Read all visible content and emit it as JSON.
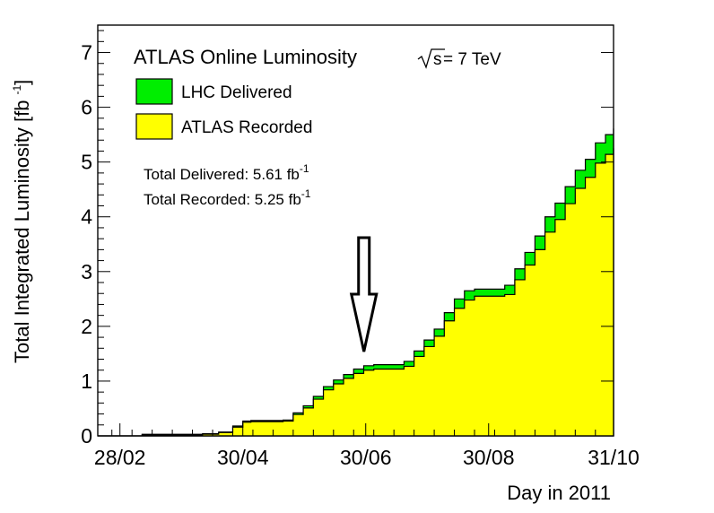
{
  "chart_data": {
    "type": "area",
    "title": "ATLAS Online Luminosity",
    "energy_label": "s",
    "energy_value": " = 7 TeV",
    "xlabel": "Day in 2011",
    "ylabel": "Total Integrated Luminosity [fb",
    "ylabel_unit_exp": "-1",
    "ylabel_close": "]",
    "x_tick_labels": [
      "28/02",
      "30/04",
      "30/06",
      "30/08",
      "31/10"
    ],
    "x_tick_days": [
      59,
      120,
      181,
      242,
      304
    ],
    "xlim": [
      48,
      304
    ],
    "ylim": [
      0,
      7.5
    ],
    "y_ticks": [
      0,
      1,
      2,
      3,
      4,
      5,
      6,
      7
    ],
    "legend": [
      {
        "label": "LHC Delivered",
        "color": "#00ee00"
      },
      {
        "label": "ATLAS Recorded",
        "color": "#ffff00"
      }
    ],
    "annotations": {
      "delivered_text": "Total Delivered: 5.61 fb",
      "recorded_text": "Total Recorded: 5.25 fb",
      "unit_exp": "-1"
    },
    "arrow_day": 181,
    "series": [
      {
        "name": "LHC Delivered",
        "x": [
          48,
          70,
          100,
          108,
          115,
          120,
          124,
          130,
          135,
          140,
          145,
          150,
          155,
          160,
          165,
          170,
          175,
          180,
          185,
          190,
          195,
          200,
          205,
          210,
          215,
          220,
          225,
          230,
          235,
          240,
          245,
          250,
          255,
          260,
          265,
          270,
          275,
          280,
          285,
          290,
          295,
          300,
          304
        ],
        "values": [
          0,
          0.03,
          0.04,
          0.07,
          0.18,
          0.27,
          0.28,
          0.28,
          0.28,
          0.29,
          0.42,
          0.55,
          0.72,
          0.9,
          1.02,
          1.12,
          1.22,
          1.28,
          1.3,
          1.3,
          1.3,
          1.36,
          1.55,
          1.75,
          1.95,
          2.25,
          2.5,
          2.65,
          2.68,
          2.68,
          2.68,
          2.75,
          3.05,
          3.35,
          3.65,
          4.0,
          4.25,
          4.55,
          4.85,
          5.05,
          5.35,
          5.5,
          5.61
        ]
      },
      {
        "name": "ATLAS Recorded",
        "x": [
          48,
          70,
          100,
          108,
          115,
          120,
          124,
          130,
          135,
          140,
          145,
          150,
          155,
          160,
          165,
          170,
          175,
          180,
          185,
          190,
          195,
          200,
          205,
          210,
          215,
          220,
          225,
          230,
          235,
          240,
          245,
          250,
          255,
          260,
          265,
          270,
          275,
          280,
          285,
          290,
          295,
          300,
          304
        ],
        "values": [
          0,
          0.02,
          0.03,
          0.06,
          0.16,
          0.25,
          0.26,
          0.26,
          0.26,
          0.27,
          0.39,
          0.51,
          0.67,
          0.84,
          0.95,
          1.05,
          1.14,
          1.2,
          1.22,
          1.22,
          1.22,
          1.27,
          1.45,
          1.63,
          1.82,
          2.1,
          2.33,
          2.48,
          2.55,
          2.55,
          2.55,
          2.58,
          2.85,
          3.12,
          3.4,
          3.72,
          3.95,
          4.24,
          4.52,
          4.72,
          4.98,
          5.14,
          5.25
        ]
      }
    ]
  }
}
